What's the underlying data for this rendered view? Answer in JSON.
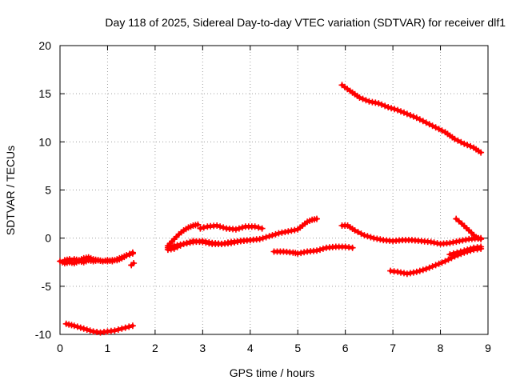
{
  "chart_data": {
    "type": "scatter",
    "title": "Day 118 of 2025, Sidereal Day-to-day VTEC variation (SDTVAR) for receiver dlf1",
    "xlabel": "GPS time / hours",
    "ylabel": "SDTVAR / TECUs",
    "xlim": [
      0,
      9
    ],
    "ylim": [
      -10,
      20
    ],
    "xticks": [
      "0",
      "1",
      "2",
      "3",
      "4",
      "5",
      "6",
      "7",
      "8",
      "9"
    ],
    "yticks": [
      "-10",
      "-5",
      "0",
      "5",
      "10",
      "15",
      "20"
    ],
    "grid": true,
    "series_color": "#ff0000",
    "tracks": [
      {
        "x": [
          0.0,
          0.1,
          0.2,
          0.3,
          0.4,
          0.5,
          0.6,
          0.7,
          0.8,
          0.9,
          1.0,
          1.1,
          1.2,
          1.3,
          1.4,
          1.53
        ],
        "y": [
          -2.4,
          -2.6,
          -2.5,
          -2.6,
          -2.4,
          -2.5,
          -2.3,
          -2.4,
          -2.3,
          -2.4,
          -2.4,
          -2.3,
          -2.3,
          -2.1,
          -1.8,
          -1.6
        ]
      },
      {
        "x": [
          0.1,
          0.2,
          0.3,
          0.4,
          0.5,
          0.6,
          0.7,
          0.8,
          0.9,
          1.0,
          1.1,
          1.2,
          1.3,
          1.4,
          1.53
        ],
        "y": [
          -2.3,
          -2.2,
          -2.2,
          -2.3,
          -2.1,
          -2.0,
          -2.2,
          -2.3,
          -2.4,
          -2.3,
          -2.4,
          -2.2,
          -2.0,
          -1.8,
          -1.5
        ]
      },
      {
        "x": [
          1.5,
          1.55
        ],
        "y": [
          -2.8,
          -2.6
        ]
      },
      {
        "x": [
          0.13,
          0.3,
          0.5,
          0.7,
          0.85,
          1.0,
          1.15,
          1.3,
          1.45,
          1.53
        ],
        "y": [
          -8.9,
          -9.1,
          -9.4,
          -9.7,
          -9.8,
          -9.7,
          -9.6,
          -9.4,
          -9.2,
          -9.1
        ]
      },
      {
        "x": [
          2.27,
          2.4,
          2.5,
          2.6,
          2.7,
          2.8,
          2.9
        ],
        "y": [
          -0.8,
          -0.1,
          0.4,
          0.8,
          1.1,
          1.3,
          1.4
        ]
      },
      {
        "x": [
          2.27,
          2.4,
          2.6,
          2.8,
          3.0,
          3.2,
          3.4,
          3.6,
          3.8,
          4.0,
          4.2,
          4.4,
          4.6,
          4.8,
          5.0,
          5.1,
          5.2,
          5.3,
          5.4
        ],
        "y": [
          -1.0,
          -0.8,
          -0.6,
          -0.4,
          -0.3,
          -0.5,
          -0.6,
          -0.4,
          -0.3,
          -0.2,
          -0.1,
          0.2,
          0.5,
          0.7,
          0.9,
          1.3,
          1.7,
          1.9,
          2.0
        ]
      },
      {
        "x": [
          2.27,
          2.4,
          2.6,
          2.8,
          3.0,
          3.2,
          3.4,
          3.6,
          3.8,
          4.0
        ],
        "y": [
          -1.2,
          -1.1,
          -0.6,
          -0.3,
          -0.4,
          -0.6,
          -0.6,
          -0.5,
          -0.3,
          -0.2
        ]
      },
      {
        "x": [
          2.95,
          3.1,
          3.3,
          3.5,
          3.7,
          3.9,
          4.1,
          4.25
        ],
        "y": [
          1.0,
          1.2,
          1.3,
          1.0,
          0.9,
          1.2,
          1.2,
          1.0
        ]
      },
      {
        "x": [
          4.5,
          4.7,
          4.9,
          5.0,
          5.2,
          5.4,
          5.6,
          5.8,
          6.0,
          6.15
        ],
        "y": [
          -1.4,
          -1.4,
          -1.5,
          -1.6,
          -1.4,
          -1.3,
          -1.0,
          -0.9,
          -0.9,
          -1.0
        ]
      },
      {
        "x": [
          5.93,
          6.1,
          6.3,
          6.5,
          6.7,
          6.9,
          7.1,
          7.3,
          7.5,
          7.7,
          7.9,
          8.1,
          8.3,
          8.5,
          8.7,
          8.85
        ],
        "y": [
          15.9,
          15.3,
          14.6,
          14.2,
          14.0,
          13.6,
          13.3,
          12.9,
          12.5,
          12.0,
          11.5,
          11.0,
          10.3,
          9.8,
          9.4,
          8.9
        ]
      },
      {
        "x": [
          5.93,
          6.05,
          6.2,
          6.4,
          6.6,
          6.8,
          7.0,
          7.2,
          7.4,
          7.6,
          7.8,
          8.0,
          8.2,
          8.4,
          8.6,
          8.85
        ],
        "y": [
          1.3,
          1.3,
          0.8,
          0.3,
          0.0,
          -0.2,
          -0.3,
          -0.2,
          -0.2,
          -0.3,
          -0.4,
          -0.6,
          -0.5,
          -0.3,
          -0.1,
          0.0
        ]
      },
      {
        "x": [
          6.95,
          7.1,
          7.3,
          7.5,
          7.7,
          7.9,
          8.1,
          8.3,
          8.5,
          8.7,
          8.85
        ],
        "y": [
          -3.4,
          -3.5,
          -3.7,
          -3.5,
          -3.2,
          -2.8,
          -2.4,
          -1.9,
          -1.5,
          -1.2,
          -1.1
        ]
      },
      {
        "x": [
          8.33,
          8.45,
          8.6,
          8.75,
          8.85
        ],
        "y": [
          2.0,
          1.5,
          0.8,
          0.1,
          -0.1
        ]
      },
      {
        "x": [
          8.2,
          8.35,
          8.5,
          8.7,
          8.85
        ],
        "y": [
          -1.7,
          -1.5,
          -1.3,
          -1.0,
          -0.9
        ]
      }
    ]
  }
}
